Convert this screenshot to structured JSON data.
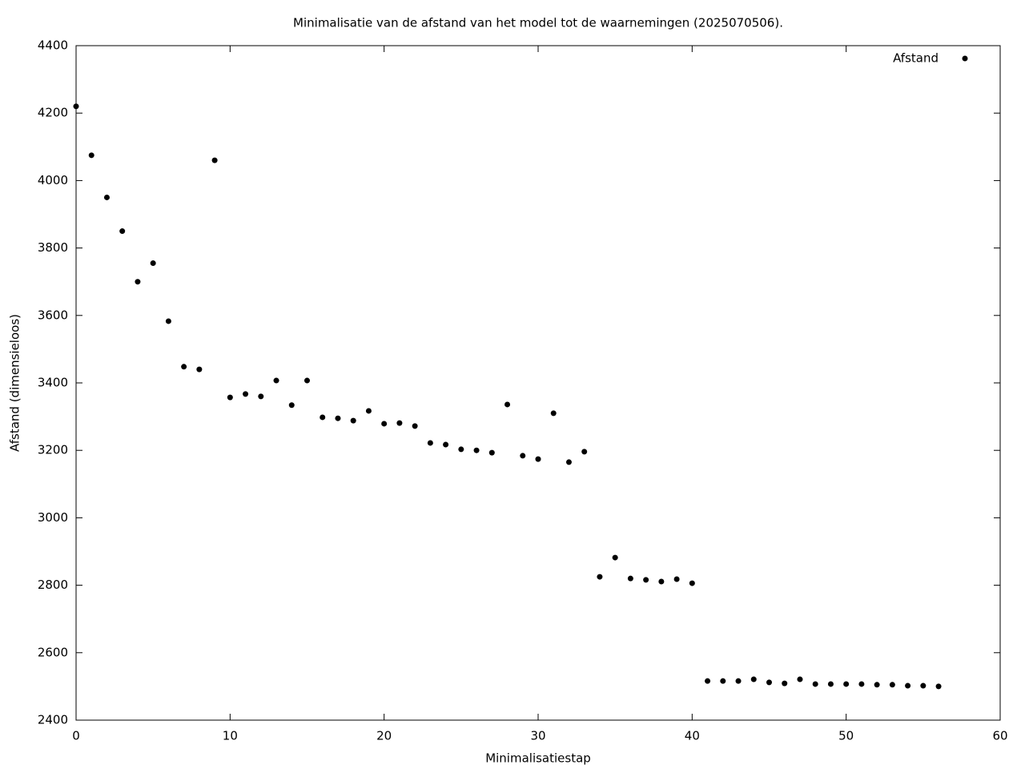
{
  "chart_data": {
    "type": "scatter",
    "title": "Minimalisatie van de afstand van het model tot de waarnemingen (2025070506).",
    "x_label": "Minimalisatiestap",
    "y_label": "Afstand (dimensieloos)",
    "series": [
      {
        "name": "Afstand",
        "color": "#000000",
        "x": [
          0,
          1,
          2,
          3,
          4,
          5,
          6,
          7,
          8,
          9,
          10,
          11,
          12,
          13,
          14,
          15,
          16,
          17,
          18,
          19,
          20,
          21,
          22,
          23,
          24,
          25,
          26,
          27,
          28,
          29,
          30,
          31,
          32,
          33,
          34,
          35,
          36,
          37,
          38,
          39,
          40,
          41,
          42,
          43,
          44,
          45,
          46,
          47,
          48,
          49,
          50,
          51,
          52,
          53,
          54,
          55,
          56
        ],
        "values": [
          4220,
          4075,
          3950,
          3850,
          3700,
          3755,
          3583,
          3448,
          3440,
          4060,
          3357,
          3367,
          3360,
          3407,
          3334,
          3407,
          3298,
          3295,
          3288,
          3317,
          3279,
          3281,
          3272,
          3222,
          3217,
          3203,
          3200,
          3193,
          3336,
          3184,
          3174,
          3310,
          3165,
          3196,
          2825,
          2882,
          2820,
          2816,
          2811,
          2818,
          2806,
          2516,
          2516,
          2516,
          2521,
          2512,
          2509,
          2521,
          2507,
          2507,
          2507,
          2507,
          2505,
          2505,
          2502,
          2502,
          2500
        ]
      }
    ],
    "xlim": [
      0,
      60
    ],
    "xticks": [
      0,
      10,
      20,
      30,
      40,
      50,
      60
    ],
    "ylim": [
      2400,
      4400
    ],
    "yticks": [
      2400,
      2600,
      2800,
      3000,
      3200,
      3400,
      3600,
      3800,
      4000,
      4200,
      4400
    ],
    "grid": false,
    "legend": "top-right"
  }
}
